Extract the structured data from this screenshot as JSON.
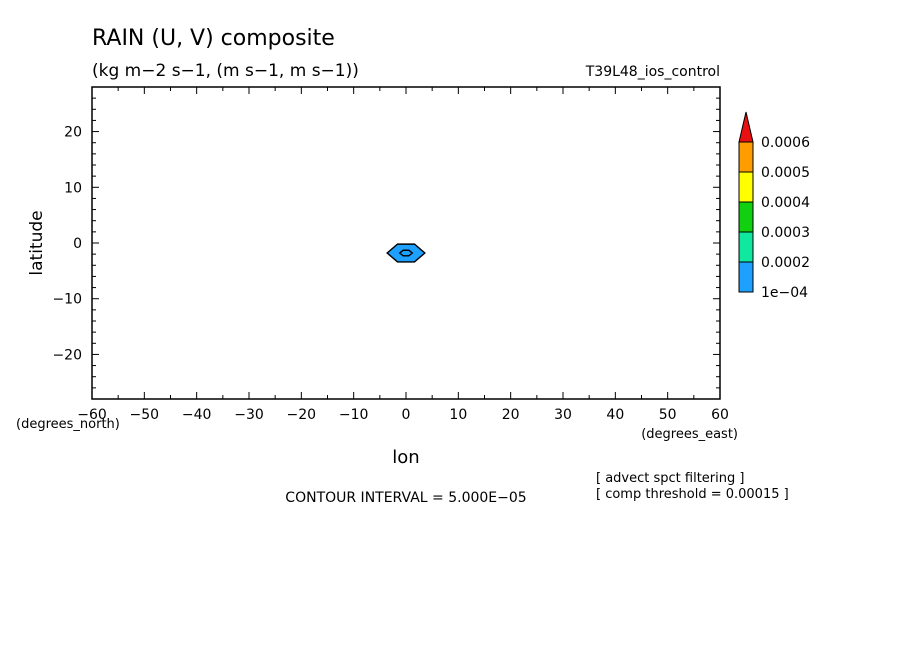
{
  "chart_data": {
    "type": "heatmap",
    "title": "RAIN (U, V) composite",
    "subtitle": "(kg m−2 s−1, (m s−1, m s−1))",
    "run_label": "T39L48_ios_control",
    "xlabel": "lon",
    "ylabel": "latitude",
    "x_units_label": "(degrees_east)",
    "y_units_label": "(degrees_north)",
    "xlim": [
      -60,
      60
    ],
    "ylim": [
      -28,
      28
    ],
    "x_ticks": [
      "−60",
      "−50",
      "−40",
      "−30",
      "−20",
      "−10",
      "0",
      "10",
      "20",
      "30",
      "40",
      "50",
      "60"
    ],
    "x_tick_values": [
      -60,
      -50,
      -40,
      -30,
      -20,
      -10,
      0,
      10,
      20,
      30,
      40,
      50,
      60
    ],
    "y_ticks": [
      "20",
      "10",
      "0",
      "−10",
      "−20"
    ],
    "y_tick_values": [
      20,
      10,
      0,
      -10,
      -20
    ],
    "contour_interval_label": "CONTOUR INTERVAL = 5.000E−05",
    "notes": [
      "[ advect spct filtering ]",
      "[ comp threshold = 0.00015 ]"
    ],
    "legend": {
      "placement": "right",
      "levels": [
        "1e−04",
        "0.0002",
        "0.0003",
        "0.0004",
        "0.0005",
        "0.0006"
      ],
      "colors": [
        "#1ea0ff",
        "#10e8a0",
        "#10d010",
        "#ffff00",
        "#ff9c00",
        "#e81010"
      ]
    },
    "features": [
      {
        "name": "rain-blob-outer",
        "center": [
          0,
          -1.8
        ],
        "half_width_lon": 3.6,
        "half_height_lat": 1.6,
        "level": "1e−04",
        "color": "#1ea0ff"
      },
      {
        "name": "rain-blob-inner",
        "center": [
          0,
          -1.8
        ],
        "half_width_lon": 1.2,
        "half_height_lat": 0.5,
        "level": "1e−04",
        "color": "#1ea0ff"
      }
    ]
  }
}
